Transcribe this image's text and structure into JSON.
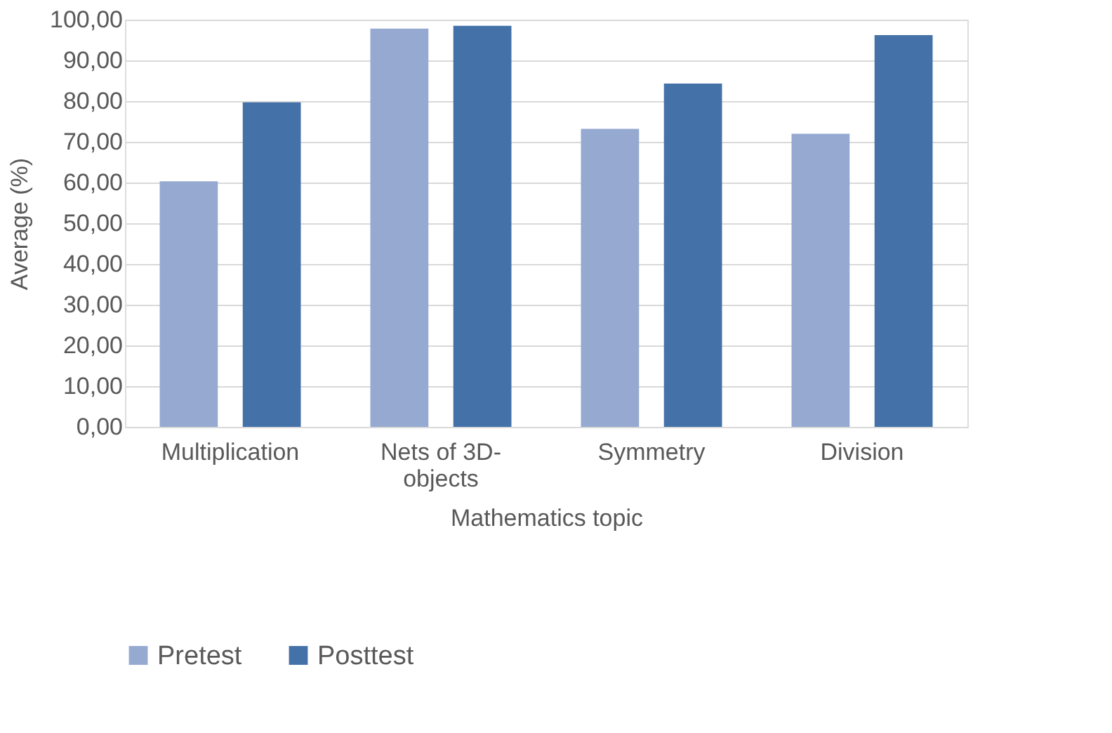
{
  "chart_data": {
    "type": "bar",
    "xlabel": "Mathematics topic",
    "ylabel": "Average (%)",
    "categories": [
      "Multiplication",
      "Nets of 3D-objects",
      "Symmetry",
      "Division"
    ],
    "series": [
      {
        "name": "Pretest",
        "color": "#95a9d1",
        "values": [
          60.3,
          97.8,
          73.2,
          72.0
        ]
      },
      {
        "name": "Posttest",
        "color": "#4472a8",
        "values": [
          79.7,
          98.5,
          84.3,
          96.2
        ]
      }
    ],
    "ylim": [
      0,
      100
    ],
    "yticks": [
      {
        "value": 0,
        "label": "0,00"
      },
      {
        "value": 10,
        "label": "10,00"
      },
      {
        "value": 20,
        "label": "20,00"
      },
      {
        "value": 30,
        "label": "30,00"
      },
      {
        "value": 40,
        "label": "40,00"
      },
      {
        "value": 50,
        "label": "50,00"
      },
      {
        "value": 60,
        "label": "60,00"
      },
      {
        "value": 70,
        "label": "70,00"
      },
      {
        "value": 80,
        "label": "80,00"
      },
      {
        "value": 90,
        "label": "90,00"
      },
      {
        "value": 100,
        "label": "100,00"
      }
    ],
    "grid": "y",
    "legend": "bottom"
  }
}
